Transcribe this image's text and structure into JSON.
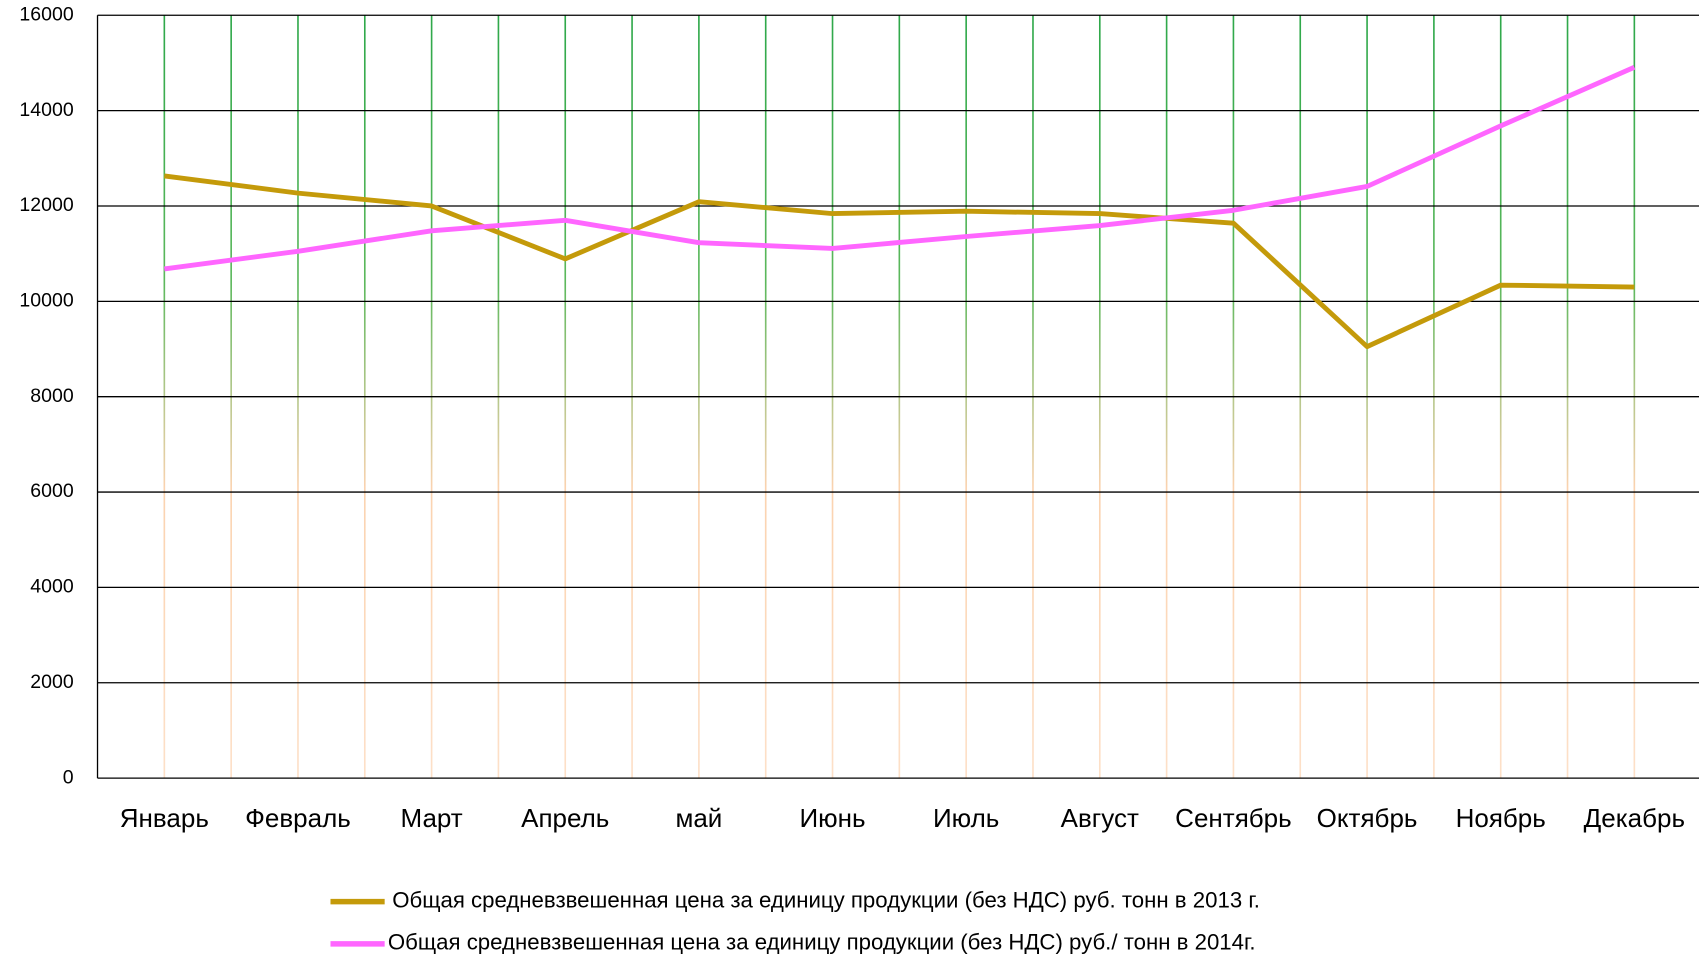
{
  "chart_data": {
    "type": "line",
    "categories": [
      "Январь",
      "Февраль",
      "Март",
      "Апрель",
      "май",
      "Июнь",
      "Июль",
      "Август",
      "Сентябрь",
      "Октябрь",
      "Ноябрь",
      "Декабрь"
    ],
    "series": [
      {
        "name": "Общая средневзвешенная цена за единицу продукции (без НДС) руб. тонн в 2013 г.",
        "color": "#c49a0a",
        "values": [
          12630,
          12270,
          12000,
          10890,
          12090,
          11840,
          11890,
          11840,
          11640,
          9050,
          10340,
          10300
        ]
      },
      {
        "name": "Общая средневзвешенная цена  за единицу продукции (без НДС)  руб./ тонн в  2014г.",
        "color": "#ff66ff",
        "values": [
          10680,
          11050,
          11480,
          11700,
          11230,
          11110,
          11360,
          11590,
          11910,
          12410,
          13680,
          14910
        ]
      }
    ],
    "ylim": [
      0,
      16000
    ],
    "yticks": [
      0,
      2000,
      4000,
      6000,
      8000,
      10000,
      12000,
      14000,
      16000
    ],
    "grid": true,
    "legend": "bottom"
  }
}
